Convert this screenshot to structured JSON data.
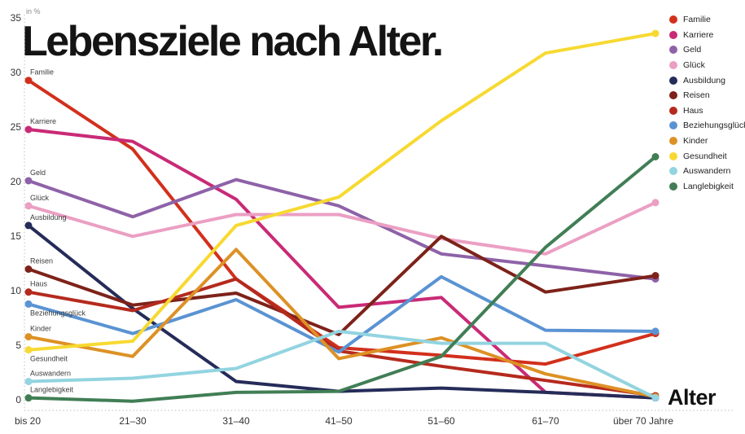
{
  "page": {
    "title": "Lebensziele nach Alter.",
    "unit_label": "in %",
    "x_axis_label": "Alter"
  },
  "chart_data": {
    "type": "line",
    "title": "Lebensziele nach Alter.",
    "xlabel": "Alter",
    "ylabel": "in %",
    "grid": false,
    "legend_position": "top-right",
    "ylim": [
      0,
      35
    ],
    "y_ticks": [
      0,
      5,
      10,
      15,
      20,
      25,
      30,
      35
    ],
    "categories": [
      "bis 20",
      "21–30",
      "31–40",
      "41–50",
      "51–60",
      "61–70",
      "über 70 Jahre"
    ],
    "series": [
      {
        "name": "Familie",
        "color": "#d2301c",
        "label_side": "above",
        "values": [
          29.5,
          23.2,
          11.3,
          5.0,
          4.3,
          3.5,
          6.3
        ]
      },
      {
        "name": "Karriere",
        "color": "#c92a76",
        "label_side": "above",
        "values": [
          25.0,
          23.9,
          18.6,
          8.7,
          9.6,
          0.9,
          0.4
        ]
      },
      {
        "name": "Geld",
        "color": "#8e62a8",
        "label_side": "above",
        "values": [
          20.3,
          17.0,
          20.4,
          18.0,
          13.6,
          12.5,
          11.3
        ]
      },
      {
        "name": "Glück",
        "color": "#eb9fc3",
        "label_side": "above",
        "values": [
          18.0,
          15.2,
          17.2,
          17.2,
          15.0,
          13.6,
          18.3
        ]
      },
      {
        "name": "Ausbildung",
        "color": "#252c59",
        "label_side": "above",
        "values": [
          16.2,
          8.6,
          1.9,
          1.0,
          1.3,
          0.9,
          0.4
        ]
      },
      {
        "name": "Reisen",
        "color": "#7d221a",
        "label_side": "above",
        "values": [
          12.2,
          8.9,
          10.0,
          6.2,
          15.2,
          10.1,
          11.6
        ]
      },
      {
        "name": "Haus",
        "color": "#b52a1e",
        "label_side": "above",
        "values": [
          10.1,
          8.4,
          11.3,
          4.7,
          3.3,
          2.0,
          0.6
        ]
      },
      {
        "name": "Beziehungsglück",
        "color": "#5a93d3",
        "label_side": "below",
        "values": [
          9.0,
          6.3,
          9.4,
          4.6,
          11.5,
          6.6,
          6.5
        ]
      },
      {
        "name": "Kinder",
        "color": "#dd9125",
        "label_side": "above",
        "values": [
          6.0,
          4.2,
          14.0,
          4.0,
          5.9,
          2.6,
          0.5
        ]
      },
      {
        "name": "Gesundheit",
        "color": "#f7d931",
        "label_side": "below",
        "values": [
          4.8,
          5.6,
          16.2,
          18.8,
          25.8,
          32.0,
          33.8
        ]
      },
      {
        "name": "Auswandern",
        "color": "#92d4e0",
        "label_side": "above",
        "values": [
          1.9,
          2.2,
          3.1,
          6.5,
          5.4,
          5.4,
          0.4
        ]
      },
      {
        "name": "Langlebigkeit",
        "color": "#417e55",
        "label_side": "above",
        "values": [
          0.4,
          0.1,
          0.9,
          1.0,
          4.2,
          14.2,
          22.5
        ]
      }
    ]
  }
}
